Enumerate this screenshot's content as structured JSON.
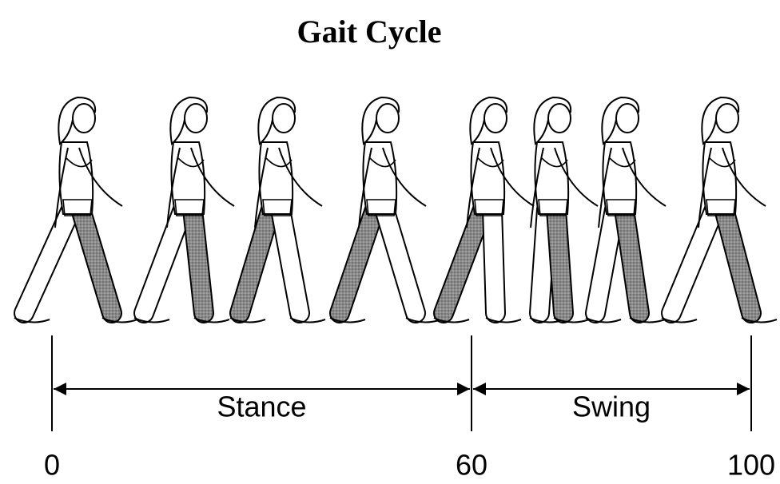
{
  "title": "Gait Cycle",
  "phases": [
    "Stance",
    "Swing"
  ],
  "scale": {
    "ticks": [
      0,
      60,
      100
    ],
    "lim": [
      0,
      100
    ]
  }
}
